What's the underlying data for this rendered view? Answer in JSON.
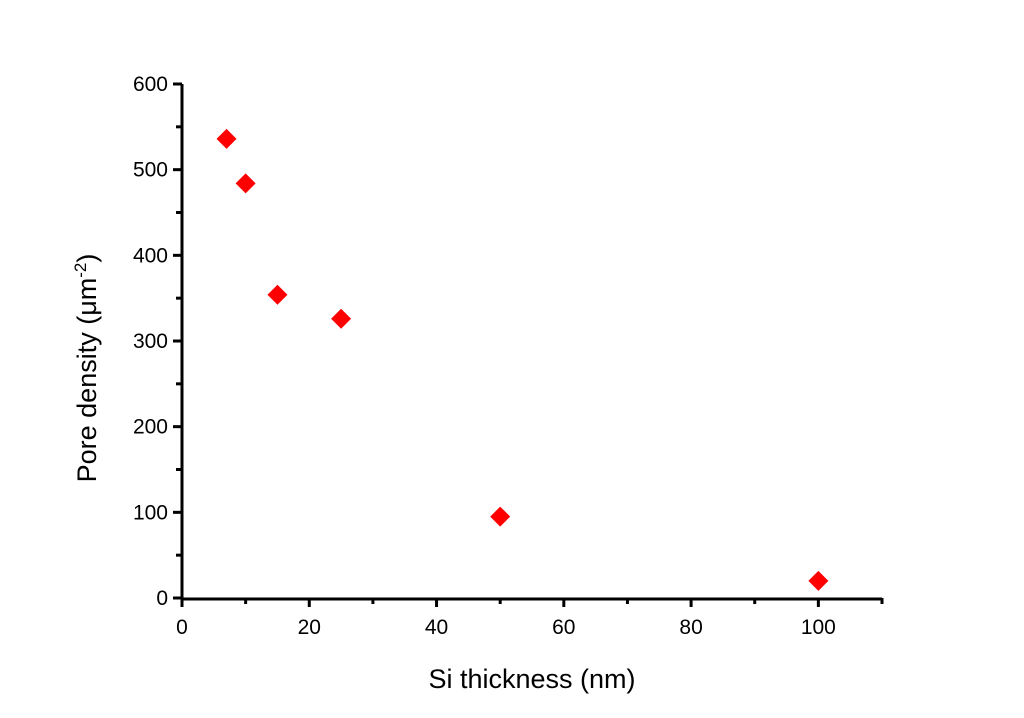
{
  "chart_data": {
    "type": "scatter",
    "title": "",
    "xlabel": "Si thickness (nm)",
    "ylabel": {
      "main": "Pore density (μm",
      "superscript": "-2",
      "close": ")"
    },
    "xlim": [
      0,
      110
    ],
    "ylim": [
      0,
      600
    ],
    "xticks": [
      "0",
      "20",
      "40",
      "60",
      "80",
      "100"
    ],
    "yticks": [
      "0",
      "100",
      "200",
      "300",
      "400",
      "500",
      "600"
    ],
    "grid": false,
    "marker": "diamond",
    "color": "#ff0000",
    "series": [
      {
        "name": "Pore density",
        "x": [
          7,
          10,
          15,
          25,
          50,
          100
        ],
        "y": [
          536,
          484,
          354,
          326,
          95,
          20
        ]
      }
    ]
  }
}
